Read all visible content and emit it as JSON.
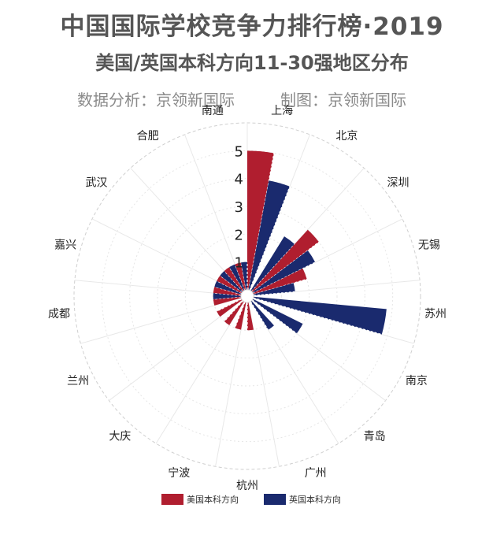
{
  "header": {
    "title": "中国国际学校竞争力排行榜·2019",
    "subtitle": "美国/英国本科方向11-30强地区分布",
    "credit_left": "数据分析：京领新国际",
    "credit_right": "制图：京领新国际"
  },
  "chart_data": {
    "type": "polar-bar",
    "categories": [
      "上海",
      "北京",
      "深圳",
      "无锡",
      "苏州",
      "南京",
      "青岛",
      "广州",
      "杭州",
      "宁波",
      "大庆",
      "兰州",
      "成都",
      "嘉兴",
      "武汉",
      "合肥",
      "南通"
    ],
    "series": [
      {
        "name": "美国本科方向",
        "color": "#b01e2f",
        "values": [
          5,
          0,
          3,
          2,
          0,
          0,
          0,
          0,
          1,
          1,
          1,
          1,
          1,
          1,
          1,
          1,
          1
        ]
      },
      {
        "name": "英国本科方向",
        "color": "#1a2a6e",
        "values": [
          4,
          2.3,
          2.5,
          1.5,
          4.8,
          2,
          1.2,
          0,
          0,
          0,
          0,
          0,
          1,
          1,
          1,
          1,
          1
        ]
      }
    ],
    "r_ticks": [
      1,
      2,
      3,
      4,
      5
    ],
    "r_max": 6,
    "legend_position": "bottom"
  }
}
